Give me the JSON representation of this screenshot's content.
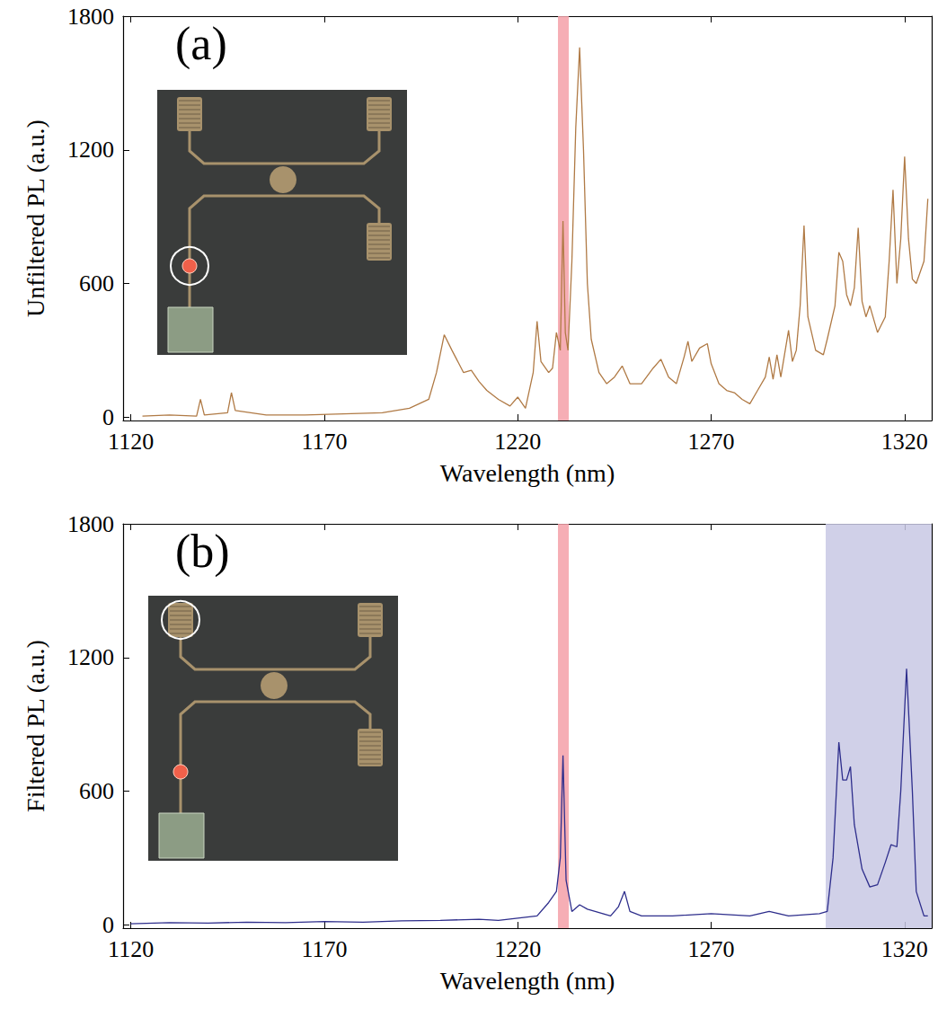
{
  "chart_data": [
    {
      "type": "line",
      "annotations": [
        "(a)"
      ],
      "x_label": "Wavelength (nm)",
      "y_label": "Unfiltered PL (a.u.)",
      "color": "#b07a45",
      "xlim": [
        1118,
        1327
      ],
      "xticks": [
        1120,
        1170,
        1220,
        1270,
        1320
      ],
      "ylim": [
        -15,
        1800
      ],
      "yticks": [
        0,
        600,
        1200,
        1800
      ],
      "highlights": [
        {
          "range": [
            1230.4,
            1233.2
          ],
          "color": "#f4a0a8"
        }
      ],
      "x": [
        1123,
        1130,
        1137,
        1138,
        1139,
        1145,
        1146,
        1147,
        1155,
        1165,
        1175,
        1185,
        1192,
        1197,
        1199,
        1201,
        1203,
        1206,
        1208,
        1210,
        1212,
        1215,
        1218,
        1220,
        1222,
        1224,
        1225,
        1226,
        1228,
        1229,
        1230,
        1231,
        1231.7,
        1232.3,
        1233,
        1234,
        1235,
        1236,
        1237,
        1238,
        1239,
        1241,
        1243,
        1245,
        1247,
        1249,
        1252,
        1255,
        1257,
        1259,
        1261,
        1263,
        1264,
        1265,
        1267,
        1269,
        1270,
        1272,
        1274,
        1276,
        1278,
        1280,
        1282,
        1284,
        1285,
        1286,
        1287,
        1288,
        1290,
        1291,
        1292,
        1293,
        1294,
        1295,
        1297,
        1299,
        1300,
        1302,
        1303,
        1304,
        1305,
        1306,
        1307,
        1308,
        1309,
        1310,
        1311,
        1313,
        1315,
        1316,
        1317,
        1318,
        1319,
        1320,
        1321,
        1322,
        1323,
        1325,
        1326
      ],
      "values": [
        5,
        10,
        5,
        80,
        10,
        20,
        110,
        30,
        10,
        10,
        15,
        20,
        40,
        80,
        200,
        370,
        300,
        200,
        210,
        160,
        120,
        80,
        50,
        90,
        40,
        200,
        430,
        250,
        200,
        220,
        380,
        300,
        880,
        380,
        300,
        700,
        1300,
        1660,
        1200,
        600,
        350,
        200,
        150,
        180,
        230,
        150,
        150,
        220,
        260,
        180,
        150,
        270,
        340,
        250,
        310,
        330,
        240,
        150,
        120,
        110,
        80,
        60,
        120,
        180,
        270,
        170,
        280,
        180,
        390,
        250,
        300,
        500,
        860,
        450,
        300,
        280,
        350,
        500,
        740,
        700,
        550,
        500,
        580,
        850,
        520,
        450,
        500,
        380,
        450,
        700,
        1020,
        600,
        800,
        1170,
        800,
        620,
        600,
        700,
        980
      ]
    },
    {
      "type": "line",
      "annotations": [
        "(b)"
      ],
      "x_label": "Wavelength (nm)",
      "y_label": "Filtered PL (a.u.)",
      "color": "#2e2e8c",
      "xlim": [
        1118,
        1327
      ],
      "xticks": [
        1120,
        1170,
        1220,
        1270,
        1320
      ],
      "ylim": [
        -15,
        1800
      ],
      "yticks": [
        0,
        600,
        1200,
        1800
      ],
      "highlights": [
        {
          "range": [
            1230.4,
            1233.2
          ],
          "color": "#f4a0a8"
        },
        {
          "range": [
            1299.6,
            1327
          ],
          "color": "#c8c8e4"
        }
      ],
      "x": [
        1120,
        1130,
        1140,
        1150,
        1160,
        1170,
        1180,
        1190,
        1200,
        1210,
        1215,
        1220,
        1225,
        1228,
        1230,
        1231,
        1231.7,
        1232.5,
        1234,
        1236,
        1238,
        1240,
        1244,
        1246,
        1247.6,
        1249,
        1252,
        1260,
        1270,
        1280,
        1285,
        1290,
        1298,
        1300,
        1301.5,
        1303,
        1304,
        1305,
        1306,
        1307,
        1309,
        1311,
        1313,
        1315,
        1316.5,
        1318,
        1319,
        1320.5,
        1322,
        1323,
        1325,
        1326
      ],
      "values": [
        5,
        10,
        8,
        12,
        10,
        15,
        12,
        18,
        20,
        25,
        20,
        30,
        40,
        100,
        150,
        300,
        760,
        200,
        60,
        90,
        70,
        60,
        40,
        80,
        150,
        60,
        40,
        40,
        50,
        40,
        60,
        40,
        50,
        60,
        300,
        820,
        650,
        650,
        710,
        450,
        250,
        170,
        180,
        280,
        360,
        350,
        600,
        1150,
        600,
        150,
        40,
        40
      ]
    }
  ]
}
